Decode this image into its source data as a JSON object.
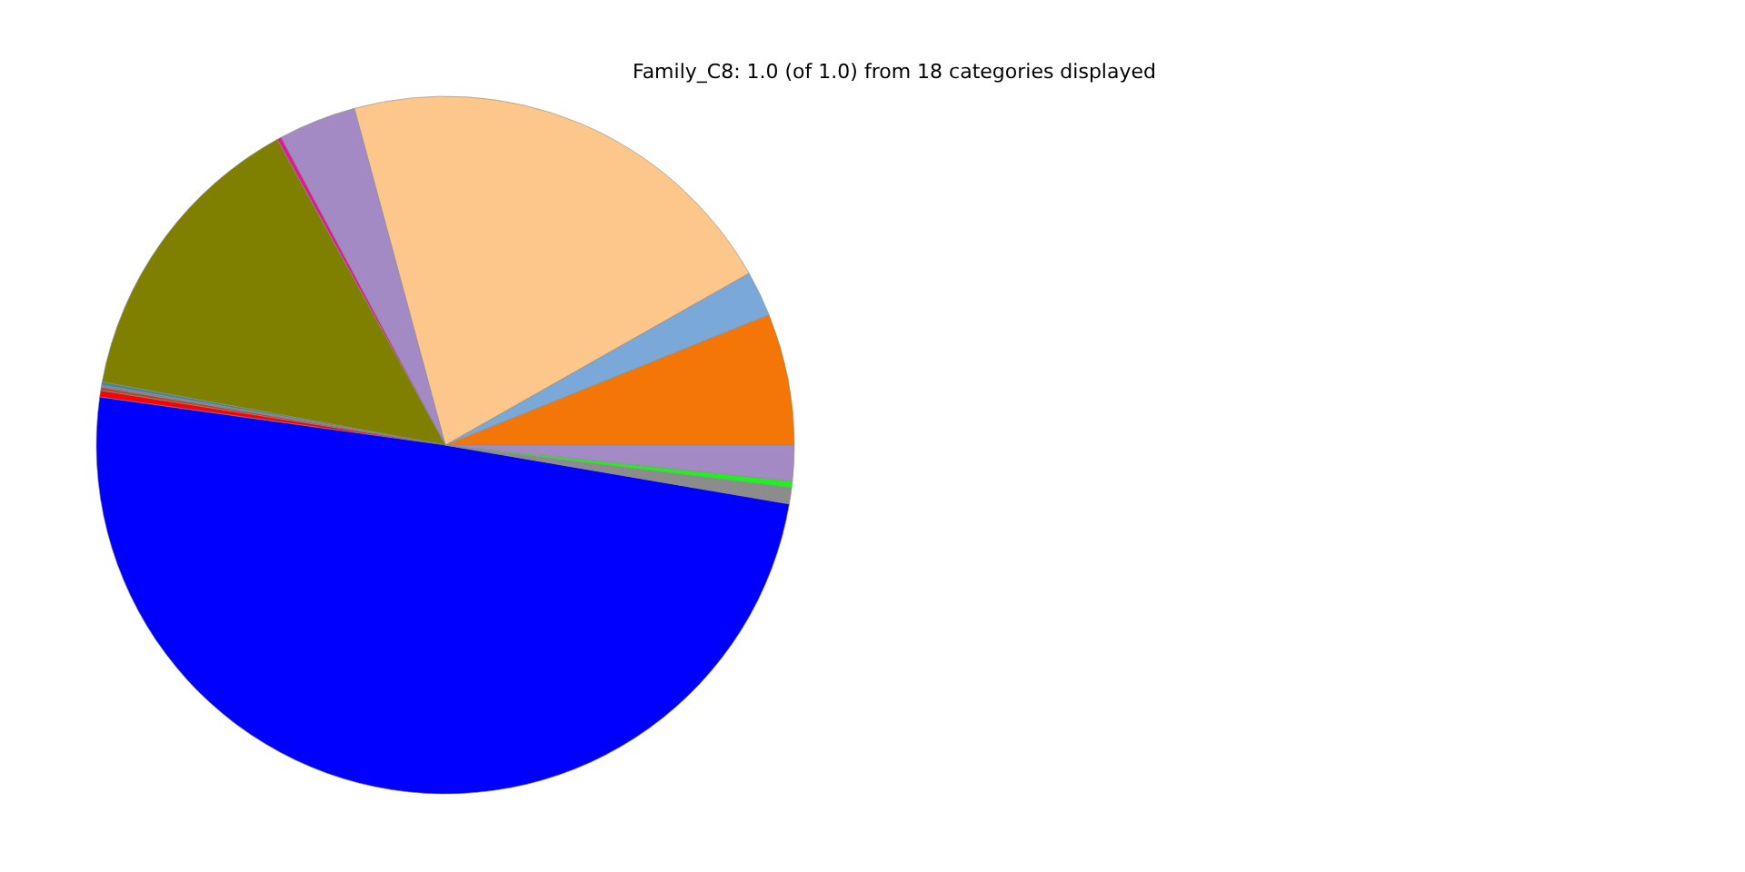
{
  "chart_data": {
    "type": "pie",
    "title": "Family_C8: 1.0 (of 1.0) from 18 categories displayed",
    "categories": [
      null,
      null,
      null,
      null,
      null,
      null,
      null,
      null,
      null,
      null,
      null,
      null,
      null,
      null
    ],
    "values": [
      6.1,
      2.1,
      21.0,
      3.6,
      0.2,
      14.1,
      0.15,
      0.1,
      0.15,
      0.3,
      49.5,
      0.75,
      0.3,
      1.65
    ],
    "colors": [
      "#f47606",
      "#7aa8d8",
      "#fdc68a",
      "#a48ac4",
      "#e0189a",
      "#808000",
      "#3a8a9a",
      "#8a7aa8",
      "#a0522d",
      "#ff0000",
      "#0000ff",
      "#8c8c8c",
      "#22ee22",
      "#a48ac4"
    ]
  }
}
